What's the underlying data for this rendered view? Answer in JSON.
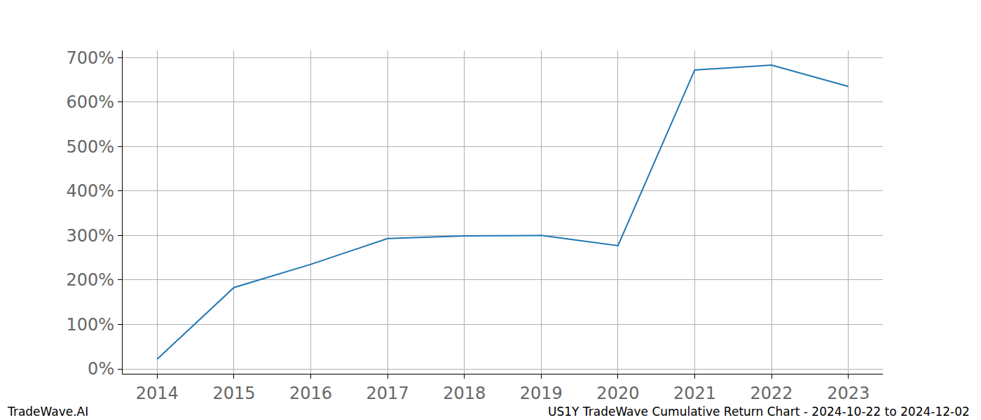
{
  "chart_data": {
    "type": "line",
    "x": [
      2014,
      2015,
      2016,
      2017,
      2018,
      2019,
      2020,
      2021,
      2022,
      2023
    ],
    "values": [
      22,
      183,
      235,
      293,
      299,
      300,
      277,
      672,
      683,
      635
    ],
    "color": "#1f77b4",
    "xlim": [
      2013.55,
      2023.45
    ],
    "xticks": [
      2014,
      2015,
      2016,
      2017,
      2018,
      2019,
      2020,
      2021,
      2022,
      2023
    ],
    "ylim": [
      -11,
      716
    ],
    "yticks": [
      {
        "value": 0,
        "label": "0%"
      },
      {
        "value": 100,
        "label": "100%"
      },
      {
        "value": 200,
        "label": "200%"
      },
      {
        "value": 300,
        "label": "300%"
      },
      {
        "value": 400,
        "label": "400%"
      },
      {
        "value": 500,
        "label": "500%"
      },
      {
        "value": 600,
        "label": "600%"
      },
      {
        "value": 700,
        "label": "700%"
      }
    ],
    "grid": true,
    "annotations": [
      "TradeWave.AI",
      "US1Y TradeWave Cumulative Return Chart - 2024-10-22 to 2024-12-02"
    ]
  }
}
